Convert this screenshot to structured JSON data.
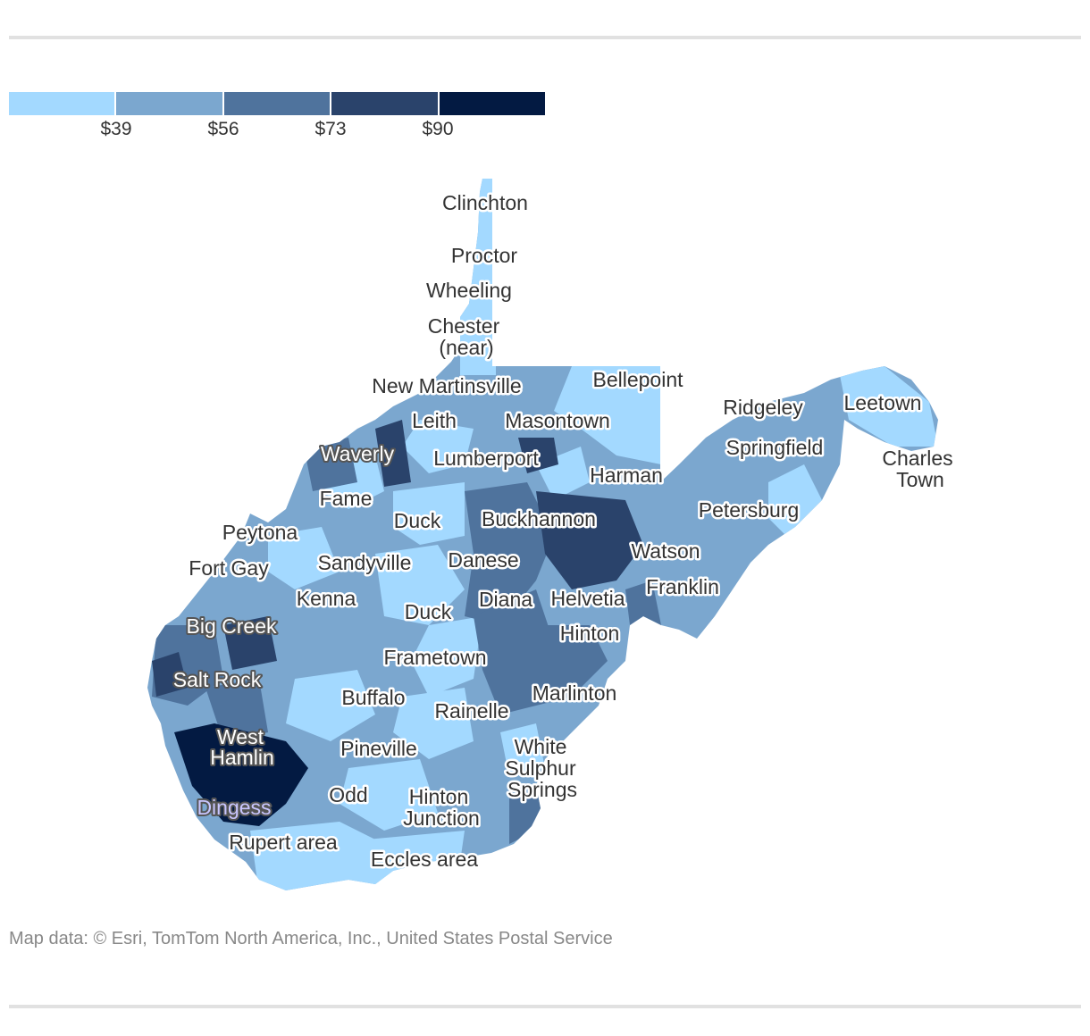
{
  "legend": {
    "colors": [
      "#a3d9ff",
      "#7ba7cf",
      "#4f739d",
      "#2a436b",
      "#031a42"
    ],
    "ticks": [
      "$39",
      "$56",
      "$73",
      "$90"
    ]
  },
  "map": {
    "base_fill": "#7ba7cf",
    "places": {
      "clinchton": "Clinchton",
      "proctor": "Proctor",
      "wheeling": "Wheeling",
      "chester_1": "Chester",
      "chester_2": "(near)",
      "new_martinsville": "New Martinsville",
      "bellepoint": "Bellepoint",
      "leith": "Leith",
      "masontown": "Masontown",
      "ridgeley": "Ridgeley",
      "leetown": "Leetown",
      "waverly": "Waverly",
      "lumberport": "Lumberport",
      "springfield": "Springfield",
      "charles_town_1": "Charles",
      "charles_town_2": "Town",
      "harman": "Harman",
      "fame": "Fame",
      "buckhannon": "Buckhannon",
      "duck_1": "Duck",
      "petersburg": "Petersburg",
      "peytona": "Peytona",
      "watson": "Watson",
      "fort_gay": "Fort Gay",
      "sandyville": "Sandyville",
      "danese": "Danese",
      "franklin": "Franklin",
      "kenna": "Kenna",
      "diana": "Diana",
      "helvetia": "Helvetia",
      "duck_2": "Duck",
      "big_creek": "Big Creek",
      "hinton_1": "Hinton",
      "frametown": "Frametown",
      "salt_rock": "Salt Rock",
      "marlinton": "Marlinton",
      "buffalo": "Buffalo",
      "rainelle": "Rainelle",
      "west_hamlin_1": "West",
      "west_hamlin_2": "Hamlin",
      "white_sulphur_1": "White",
      "white_sulphur_2": "Sulphur",
      "white_sulphur_3": "Springs",
      "pineville": "Pineville",
      "odd": "Odd",
      "hinton_junction_1": "Hinton",
      "hinton_junction_2": "Junction",
      "dingess": "Dingess",
      "rupert_area": "Rupert area",
      "eccles_area": "Eccles area"
    }
  },
  "credit": "Map data: © Esri, TomTom North America, Inc., United States Postal Service"
}
